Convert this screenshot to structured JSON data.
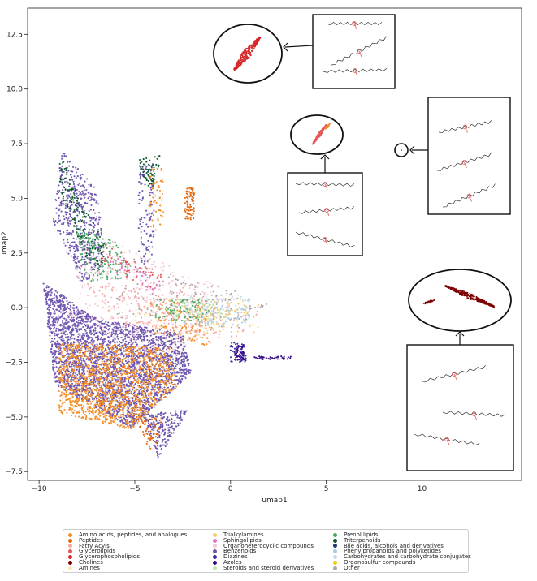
{
  "chart_data": {
    "type": "scatter",
    "title": "",
    "xlabel": "umap1",
    "ylabel": "umap2",
    "xlim": [
      -10.6,
      15.2
    ],
    "ylim": [
      -7.9,
      13.7
    ],
    "xticks": [
      -10,
      -5,
      0,
      5,
      10
    ],
    "yticks": [
      -7.5,
      -5.0,
      -2.5,
      0.0,
      2.5,
      5.0,
      7.5,
      10.0,
      12.5
    ],
    "xtick_labels": [
      "−10",
      "−5",
      "0",
      "5",
      "10"
    ],
    "ytick_labels": [
      "−7.5",
      "−5.0",
      "−2.5",
      "0.0",
      "2.5",
      "5.0",
      "7.5",
      "10.0",
      "12.5"
    ],
    "legend_placement": "below",
    "categories": [
      {
        "name": "Amino acids, peptides, and analogues",
        "color": "#f28e2b"
      },
      {
        "name": "Peptides",
        "color": "#e06a12"
      },
      {
        "name": "Fatty Acyls",
        "color": "#f5a7a0"
      },
      {
        "name": "Glycerolipids",
        "color": "#e45756"
      },
      {
        "name": "Glycerophospholipids",
        "color": "#d62728"
      },
      {
        "name": "Cholines",
        "color": "#7b0000"
      },
      {
        "name": "Amines",
        "color": "#fde9b0"
      },
      {
        "name": "Trialkylamines",
        "color": "#f6cf71"
      },
      {
        "name": "Sphingolipids",
        "color": "#e377c2"
      },
      {
        "name": "Organoheterocyclic compounds",
        "color": "#f4c7d9"
      },
      {
        "name": "Benzenoids",
        "color": "#6f56b0"
      },
      {
        "name": "Diazines",
        "color": "#3f2a9e"
      },
      {
        "name": "Azoles",
        "color": "#3b0d8c"
      },
      {
        "name": "Steroids and steroid derivatives",
        "color": "#c5e8a8"
      },
      {
        "name": "Prenol lipids",
        "color": "#4aa964"
      },
      {
        "name": "Triterpenoids",
        "color": "#0d5c2a"
      },
      {
        "name": "Bile acids, alcohols and derivatives",
        "color": "#1a3b6e"
      },
      {
        "name": "Phenylpropanoids and polyketides",
        "color": "#a6cbe3"
      },
      {
        "name": "Carbohydrates and carbohydrate conjugates",
        "color": "#c9d9ec"
      },
      {
        "name": "Organosulfur compounds",
        "color": "#f0d000"
      },
      {
        "name": "Other",
        "color": "#a9a9a9"
      }
    ],
    "clusters": [
      {
        "category": "Benzenoids",
        "shape": [
          [
            -9.8,
            1.2
          ],
          [
            -7.0,
            -0.5
          ],
          [
            -2.5,
            -1.2
          ],
          [
            -2.0,
            -3.0
          ],
          [
            -5.2,
            -5.5
          ],
          [
            -9.2,
            -3.5
          ]
        ],
        "n": 3000
      },
      {
        "category": "Benzenoids",
        "shape": [
          [
            -8.8,
            7.2
          ],
          [
            -7.0,
            5.5
          ],
          [
            -6.5,
            2.0
          ],
          [
            -7.8,
            1.0
          ],
          [
            -9.3,
            4.0
          ]
        ],
        "n": 500
      },
      {
        "category": "Benzenoids",
        "shape": [
          [
            -4.6,
            -4.8
          ],
          [
            -2.2,
            -4.7
          ],
          [
            -3.8,
            -6.9
          ]
        ],
        "n": 220
      },
      {
        "category": "Benzenoids",
        "shape": [
          [
            -4.8,
            6.5
          ],
          [
            -4.0,
            6.6
          ],
          [
            -4.0,
            2.0
          ],
          [
            -4.8,
            2.0
          ]
        ],
        "n": 120
      },
      {
        "category": "Amino acids, peptides, and analogues",
        "shape": [
          [
            -9.0,
            -1.6
          ],
          [
            -3.2,
            -1.8
          ],
          [
            -2.8,
            -3.6
          ],
          [
            -5.2,
            -5.6
          ],
          [
            -9.0,
            -4.8
          ]
        ],
        "n": 1400
      },
      {
        "category": "Amino acids, peptides, and analogues",
        "shape": [
          [
            -4.2,
            0.3
          ],
          [
            -0.6,
            0.3
          ],
          [
            -1.2,
            -1.8
          ],
          [
            -4.0,
            -1.2
          ]
        ],
        "n": 150
      },
      {
        "category": "Amino acids, peptides, and analogues",
        "shape": [
          [
            -4.2,
            6.4
          ],
          [
            -3.5,
            6.4
          ],
          [
            -3.5,
            3.5
          ],
          [
            -4.2,
            3.5
          ]
        ],
        "n": 60
      },
      {
        "category": "Peptides",
        "shape": [
          [
            -2.4,
            5.5
          ],
          [
            -1.9,
            5.5
          ],
          [
            -1.9,
            4.0
          ],
          [
            -2.4,
            4.0
          ]
        ],
        "n": 80
      },
      {
        "category": "Peptides",
        "shape": [
          [
            -5.2,
            -5.0
          ],
          [
            -3.5,
            -5.0
          ],
          [
            -4.0,
            -6.8
          ]
        ],
        "n": 60
      },
      {
        "category": "Fatty Acyls",
        "shape": [
          [
            -7.8,
            1.2
          ],
          [
            -2.0,
            1.0
          ],
          [
            1.5,
            -0.2
          ],
          [
            0.0,
            -1.8
          ],
          [
            -6.0,
            -0.8
          ]
        ],
        "n": 220
      },
      {
        "category": "Organoheterocyclic compounds",
        "shape": [
          [
            -7.5,
            3.5
          ],
          [
            -1.0,
            1.2
          ],
          [
            0.5,
            0.2
          ],
          [
            -3.0,
            -2.5
          ],
          [
            -8.5,
            -0.5
          ]
        ],
        "n": 350
      },
      {
        "category": "Triterpenoids",
        "shape": [
          [
            -8.8,
            6.8
          ],
          [
            -7.6,
            4.5
          ],
          [
            -6.2,
            2.5
          ],
          [
            -7.2,
            1.5
          ],
          [
            -8.2,
            3.5
          ],
          [
            -9.2,
            6.2
          ]
        ],
        "n": 160
      },
      {
        "category": "Triterpenoids",
        "shape": [
          [
            -4.8,
            7.0
          ],
          [
            -3.6,
            7.0
          ],
          [
            -4.0,
            5.5
          ],
          [
            -4.6,
            5.6
          ]
        ],
        "n": 60
      },
      {
        "category": "Prenol lipids",
        "shape": [
          [
            -8.2,
            3.8
          ],
          [
            -6.0,
            3.0
          ],
          [
            -5.0,
            1.4
          ],
          [
            -7.6,
            1.2
          ]
        ],
        "n": 140
      },
      {
        "category": "Prenol lipids",
        "shape": [
          [
            -4.0,
            0.4
          ],
          [
            -1.0,
            0.4
          ],
          [
            -1.0,
            -0.6
          ],
          [
            -4.0,
            -0.6
          ]
        ],
        "n": 90
      },
      {
        "category": "Steroids and steroid derivatives",
        "shape": [
          [
            -3.2,
            0.4
          ],
          [
            0.2,
            0.5
          ],
          [
            0.0,
            -0.6
          ],
          [
            -3.0,
            -0.6
          ]
        ],
        "n": 90
      },
      {
        "category": "Carbohydrates and carbohydrate conjugates",
        "shape": [
          [
            -2.5,
            0.6
          ],
          [
            1.0,
            0.6
          ],
          [
            1.0,
            -0.8
          ],
          [
            -2.5,
            -0.8
          ]
        ],
        "n": 80
      },
      {
        "category": "Phenylpropanoids and polyketides",
        "shape": [
          [
            -1.5,
            0.4
          ],
          [
            1.0,
            0.4
          ],
          [
            1.0,
            -0.8
          ],
          [
            -1.5,
            -0.8
          ]
        ],
        "n": 60
      },
      {
        "category": "Trialkylamines",
        "shape": [
          [
            -2.0,
            0.3
          ],
          [
            1.5,
            0.3
          ],
          [
            1.5,
            -1.2
          ],
          [
            -2.0,
            -1.2
          ]
        ],
        "n": 60
      },
      {
        "category": "Other",
        "shape": [
          [
            -6.0,
            2.5
          ],
          [
            1.0,
            0.6
          ],
          [
            1.0,
            -1.0
          ],
          [
            -6.0,
            -0.5
          ]
        ],
        "n": 120
      },
      {
        "category": "Diazines",
        "shape": [
          [
            0.0,
            -1.6
          ],
          [
            0.8,
            -1.6
          ],
          [
            0.8,
            -2.5
          ],
          [
            0.0,
            -2.5
          ]
        ],
        "n": 60
      },
      {
        "category": "Azoles",
        "shape": [
          [
            0.2,
            -1.7
          ],
          [
            0.7,
            -1.7
          ],
          [
            0.7,
            -2.4
          ],
          [
            0.2,
            -2.4
          ]
        ],
        "n": 40
      },
      {
        "category": "Glycerolipids",
        "shape": [
          [
            -6.5,
            3.0
          ],
          [
            -3.5,
            1.5
          ],
          [
            -4.0,
            0.8
          ],
          [
            -7.0,
            2.0
          ]
        ],
        "n": 50
      },
      {
        "category": "Sphingolipids",
        "shape": [
          [
            -6.0,
            2.5
          ],
          [
            -3.5,
            1.2
          ],
          [
            -4.0,
            0.6
          ],
          [
            -6.5,
            1.8
          ]
        ],
        "n": 40
      },
      {
        "category": "Amines",
        "shape": [
          [
            -5.0,
            0.0
          ],
          [
            -1.0,
            0.0
          ],
          [
            -1.0,
            -1.5
          ],
          [
            -5.0,
            -1.5
          ]
        ],
        "n": 50
      }
    ],
    "trails": [
      {
        "category": "Azoles",
        "from": [
          1.2,
          -2.3
        ],
        "to": [
          3.2,
          -2.3
        ],
        "n": 40
      },
      {
        "category": "Other",
        "from": [
          1.0,
          0.0
        ],
        "to": [
          1.9,
          0.1
        ],
        "n": 15
      }
    ],
    "insets": [
      {
        "category": "Glycerophospholipids",
        "pointer": "from_structures_to_ellipse",
        "molecule_count": 3
      },
      {
        "category": "Glycerolipids",
        "pointer": "from_structures_to_ellipse",
        "molecule_count": 3
      },
      {
        "category": "Bile acids, alcohols and derivatives",
        "pointer": "from_structures_to_ellipse",
        "molecule_count": 3
      },
      {
        "category": "Cholines",
        "pointer": "from_structures_to_ellipse",
        "molecule_count": 3
      }
    ]
  }
}
